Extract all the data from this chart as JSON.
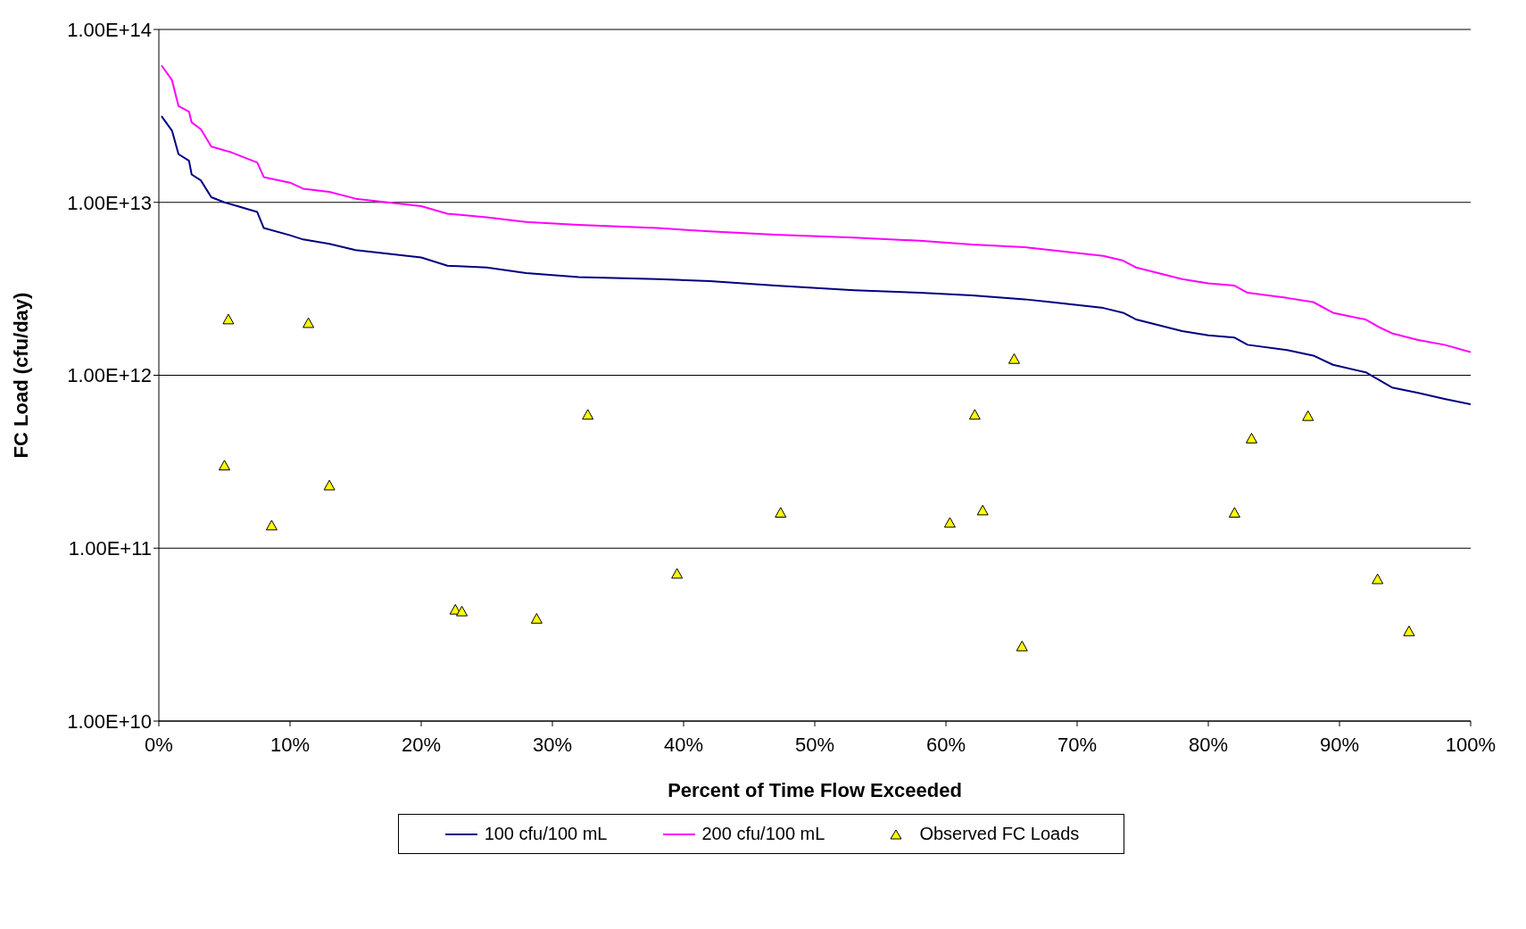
{
  "chart_data": {
    "type": "line",
    "xlabel": "Percent of Time Flow Exceeded",
    "ylabel": "FC Load (cfu/day)",
    "log": "y",
    "grid": "y",
    "legend": "bottom",
    "xlim": [
      0,
      100
    ],
    "xticks": [
      {
        "value": 0,
        "label": "0%"
      },
      {
        "value": 10,
        "label": "10%"
      },
      {
        "value": 20,
        "label": "20%"
      },
      {
        "value": 30,
        "label": "30%"
      },
      {
        "value": 40,
        "label": "40%"
      },
      {
        "value": 50,
        "label": "50%"
      },
      {
        "value": 60,
        "label": "60%"
      },
      {
        "value": 70,
        "label": "70%"
      },
      {
        "value": 80,
        "label": "80%"
      },
      {
        "value": 90,
        "label": "90%"
      },
      {
        "value": 100,
        "label": "100%"
      }
    ],
    "ylim": [
      10000000000.0,
      100000000000000.0
    ],
    "yticks": [
      {
        "value": 10000000000.0,
        "label": "1.00E+10"
      },
      {
        "value": 100000000000.0,
        "label": "1.00E+11"
      },
      {
        "value": 1000000000000.0,
        "label": "1.00E+12"
      },
      {
        "value": 10000000000000.0,
        "label": "1.00E+13"
      },
      {
        "value": 100000000000000.0,
        "label": "1.00E+14"
      }
    ],
    "series": [
      {
        "name": "100 cfu/100 mL",
        "marker": "none",
        "color": "#000080",
        "x": [
          0.2,
          1,
          1.5,
          2.3,
          2.5,
          3.2,
          4,
          5,
          6,
          7.5,
          8,
          10,
          11,
          13,
          15,
          20,
          22,
          25,
          28,
          32,
          38,
          42,
          47,
          53,
          58,
          62,
          66,
          68,
          72,
          73.5,
          74.5,
          78,
          80,
          82,
          83,
          86,
          88,
          89.5,
          92,
          93,
          94,
          96,
          98,
          100
        ],
        "values": [
          31500000000000.0,
          26000000000000.0,
          19000000000000.0,
          17400000000000.0,
          14500000000000.0,
          13400000000000.0,
          10700000000000.0,
          10000000000000.0,
          9500000000000.0,
          8800000000000.0,
          7100000000000.0,
          6450000000000.0,
          6100000000000.0,
          5750000000000.0,
          5300000000000.0,
          4800000000000.0,
          4300000000000.0,
          4200000000000.0,
          3900000000000.0,
          3700000000000.0,
          3600000000000.0,
          3500000000000.0,
          3300000000000.0,
          3100000000000.0,
          3000000000000.0,
          2900000000000.0,
          2750000000000.0,
          2650000000000.0,
          2450000000000.0,
          2300000000000.0,
          2100000000000.0,
          1800000000000.0,
          1700000000000.0,
          1650000000000.0,
          1500000000000.0,
          1400000000000.0,
          1300000000000.0,
          1150000000000.0,
          1040000000000.0,
          940000000000.0,
          850000000000.0,
          790000000000.0,
          730000000000.0,
          680000000000.0
        ]
      },
      {
        "name": "200 cfu/100 mL",
        "marker": "none",
        "color": "#ff00ff",
        "x": [
          0.2,
          1,
          1.5,
          2.3,
          2.5,
          3.2,
          4,
          5.5,
          7.5,
          8,
          10,
          11,
          13,
          15,
          20,
          22,
          25,
          28,
          32,
          38,
          42,
          47,
          53,
          58,
          62,
          66,
          68,
          72,
          73.5,
          74.5,
          78,
          80,
          82,
          83,
          86,
          88,
          89.5,
          92,
          93,
          94,
          96,
          98,
          100
        ],
        "values": [
          62000000000000.0,
          51000000000000.0,
          36000000000000.0,
          33500000000000.0,
          29000000000000.0,
          26500000000000.0,
          21000000000000.0,
          19500000000000.0,
          17000000000000.0,
          14000000000000.0,
          13000000000000.0,
          12000000000000.0,
          11500000000000.0,
          10500000000000.0,
          9500000000000.0,
          8600000000000.0,
          8200000000000.0,
          7700000000000.0,
          7400000000000.0,
          7100000000000.0,
          6800000000000.0,
          6500000000000.0,
          6250000000000.0,
          6000000000000.0,
          5700000000000.0,
          5500000000000.0,
          5300000000000.0,
          4900000000000.0,
          4600000000000.0,
          4200000000000.0,
          3600000000000.0,
          3400000000000.0,
          3300000000000.0,
          3000000000000.0,
          2800000000000.0,
          2650000000000.0,
          2300000000000.0,
          2100000000000.0,
          1900000000000.0,
          1750000000000.0,
          1600000000000.0,
          1500000000000.0,
          1360000000000.0
        ]
      },
      {
        "name": "Observed FC Loads",
        "type": "scatter",
        "marker": "triangle",
        "color": "#ffff00",
        "x": [
          5.3,
          11.4,
          5.0,
          8.6,
          13.0,
          22.6,
          23.1,
          28.8,
          32.7,
          39.5,
          47.4,
          60.3,
          62.2,
          62.8,
          65.2,
          65.8,
          82.0,
          83.3,
          87.6,
          92.9,
          95.3
        ],
        "values": [
          2100000000000.0,
          2000000000000.0,
          300000000000.0,
          135000000000.0,
          230000000000.0,
          44000000000.0,
          43000000000.0,
          39000000000.0,
          590000000000.0,
          71000000000.0,
          160000000000.0,
          140000000000.0,
          590000000000.0,
          165000000000.0,
          1240000000000.0,
          27000000000.0,
          160000000000.0,
          430000000000.0,
          580000000000.0,
          66000000000.0,
          33000000000.0
        ]
      }
    ]
  }
}
